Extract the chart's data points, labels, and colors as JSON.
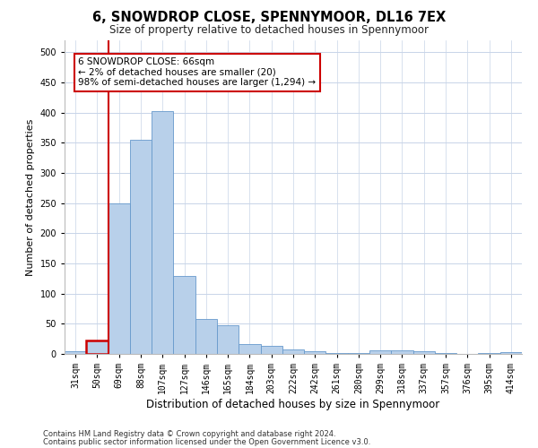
{
  "title": "6, SNOWDROP CLOSE, SPENNYMOOR, DL16 7EX",
  "subtitle": "Size of property relative to detached houses in Spennymoor",
  "xlabel": "Distribution of detached houses by size in Spennymoor",
  "ylabel": "Number of detached properties",
  "categories": [
    "31sqm",
    "50sqm",
    "69sqm",
    "88sqm",
    "107sqm",
    "127sqm",
    "146sqm",
    "165sqm",
    "184sqm",
    "203sqm",
    "222sqm",
    "242sqm",
    "261sqm",
    "280sqm",
    "299sqm",
    "318sqm",
    "337sqm",
    "357sqm",
    "376sqm",
    "395sqm",
    "414sqm"
  ],
  "values": [
    5,
    22,
    250,
    355,
    403,
    130,
    58,
    48,
    17,
    14,
    8,
    5,
    2,
    1,
    6,
    6,
    5,
    1,
    0,
    1,
    3
  ],
  "bar_color": "#b8d0ea",
  "bar_edge_color": "#6699cc",
  "highlight_color": "#cc0000",
  "highlight_bar_index": 1,
  "vline_x": 1.5,
  "annotation_text": "6 SNOWDROP CLOSE: 66sqm\n← 2% of detached houses are smaller (20)\n98% of semi-detached houses are larger (1,294) →",
  "annotation_box_facecolor": "#ffffff",
  "annotation_box_edgecolor": "#cc0000",
  "ylim": [
    0,
    520
  ],
  "yticks": [
    0,
    50,
    100,
    150,
    200,
    250,
    300,
    350,
    400,
    450,
    500
  ],
  "footer_line1": "Contains HM Land Registry data © Crown copyright and database right 2024.",
  "footer_line2": "Contains public sector information licensed under the Open Government Licence v3.0.",
  "bg_color": "#ffffff",
  "grid_color": "#c8d4e8",
  "title_fontsize": 10.5,
  "subtitle_fontsize": 8.5,
  "ylabel_fontsize": 8,
  "xlabel_fontsize": 8.5,
  "tick_fontsize": 7,
  "annot_fontsize": 7.5,
  "footer_fontsize": 6
}
